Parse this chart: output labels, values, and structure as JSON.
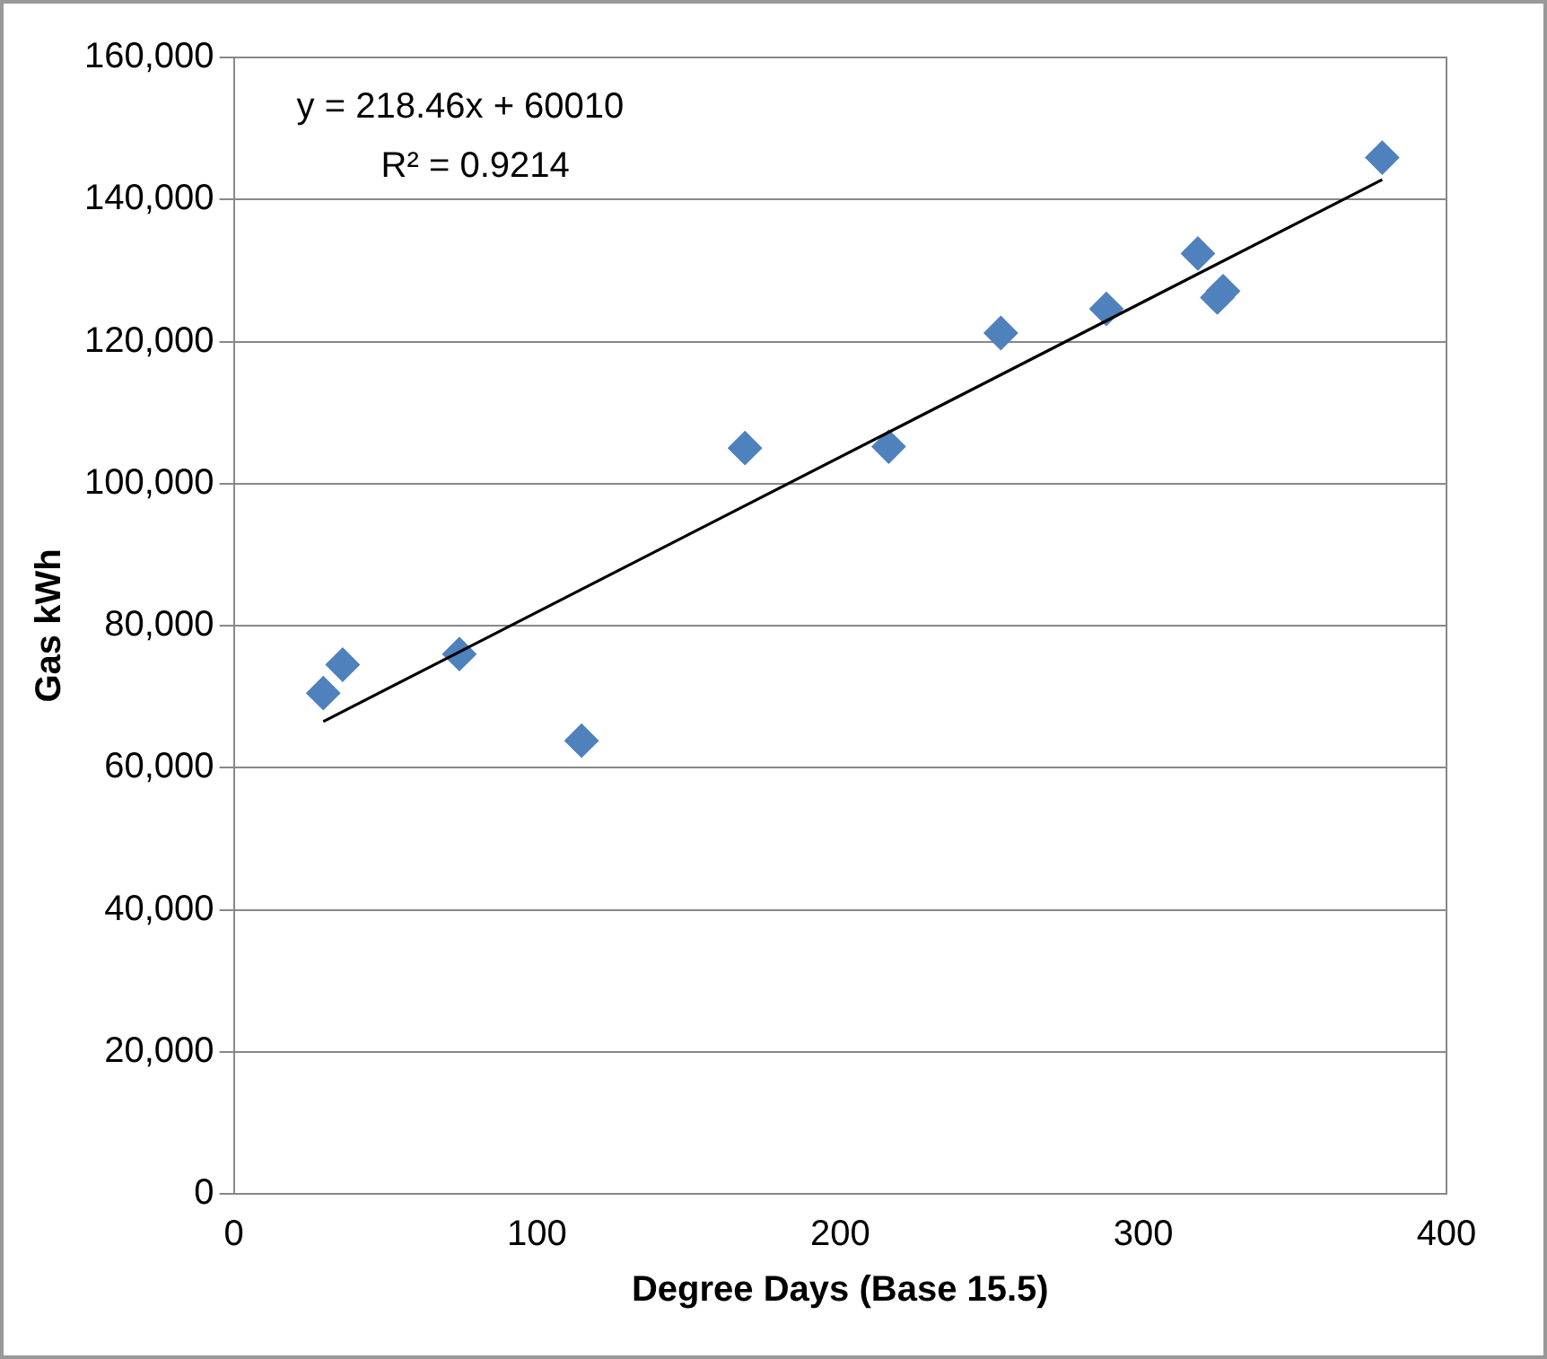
{
  "chart_data": {
    "type": "scatter",
    "xlabel": "Degree Days (Base 15.5)",
    "ylabel": "Gas kWh",
    "annotations": [
      "y = 218.46x + 60010",
      "R² = 0.9214"
    ],
    "series": [
      {
        "type": "scatter",
        "color": "#4f81bd",
        "x": [
          29.5,
          35.9,
          74.4,
          114.7,
          168.6,
          216,
          253,
          287.8,
          318,
          324.4,
          326.3,
          378.8
        ],
        "values": [
          70500,
          74500,
          76000,
          63800,
          105000,
          105200,
          121200,
          124600,
          132400,
          126200,
          127100,
          145900
        ]
      },
      {
        "type": "line",
        "color": "#000000",
        "x": [
          29.5,
          378.8
        ],
        "values": [
          66500,
          142800
        ],
        "marker": "none"
      }
    ],
    "xlim": [
      0,
      400
    ],
    "xticks": [
      0,
      100,
      200,
      300,
      400
    ],
    "ylim": [
      0,
      160000
    ],
    "yticks": [
      {
        "value": 0,
        "label": "0"
      },
      {
        "value": 20000,
        "label": "20,000"
      },
      {
        "value": 40000,
        "label": "40,000"
      },
      {
        "value": 60000,
        "label": "60,000"
      },
      {
        "value": 80000,
        "label": "80,000"
      },
      {
        "value": 100000,
        "label": "100,000"
      },
      {
        "value": 120000,
        "label": "120,000"
      },
      {
        "value": 140000,
        "label": "140,000"
      },
      {
        "value": 160000,
        "label": "160,000"
      }
    ],
    "grid": "y",
    "marker": "diamond",
    "legend": false
  }
}
